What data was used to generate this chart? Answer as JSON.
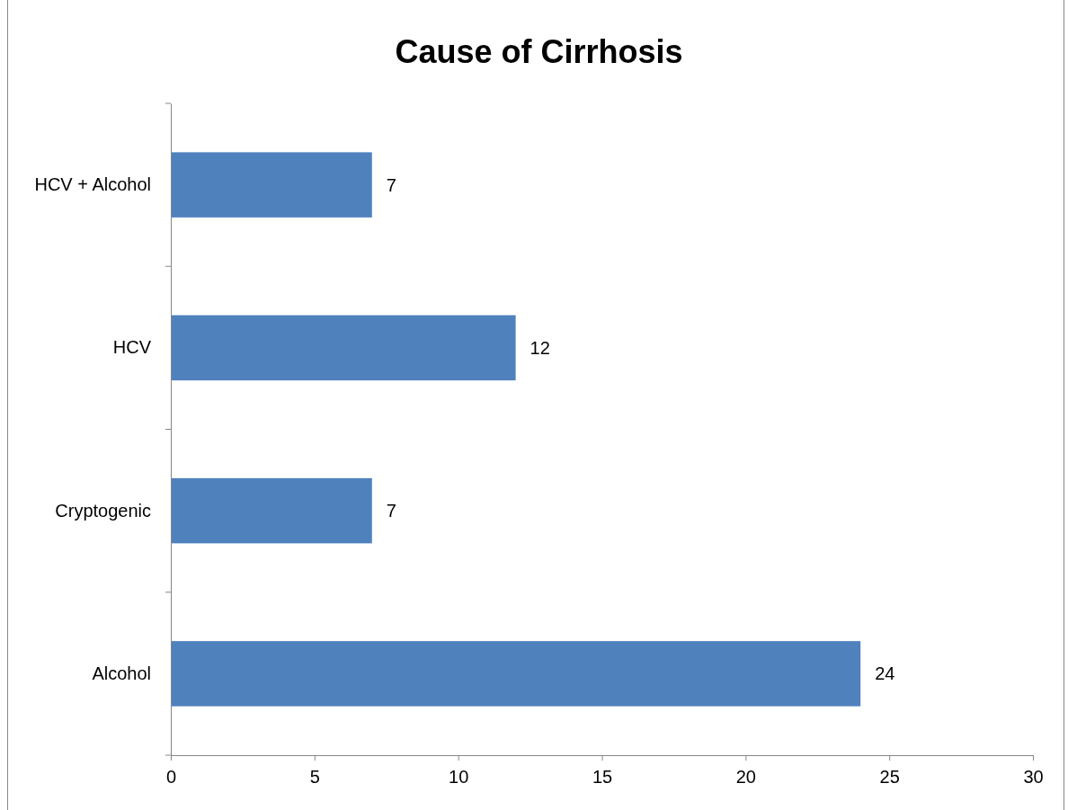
{
  "chart_data": {
    "type": "bar",
    "orientation": "horizontal",
    "title": "Cause of Cirrhosis",
    "categories": [
      "HCV + Alcohol",
      "HCV",
      "Cryptogenic",
      "Alcohol"
    ],
    "values": [
      7,
      12,
      7,
      24
    ],
    "color": "#4f81bd",
    "xlim": [
      0,
      30
    ],
    "xticks": [
      0,
      5,
      10,
      15,
      20,
      25,
      30
    ],
    "data_labels": true
  }
}
